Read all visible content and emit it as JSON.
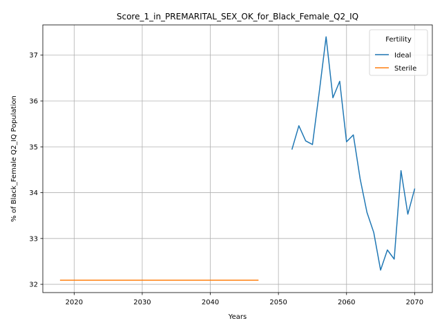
{
  "chart_data": {
    "type": "line",
    "title": "Score_1_in_PREMARITAL_SEX_OK_for_Black_Female_Q2_IQ",
    "xlabel": "Years",
    "ylabel": "% of Black_Female Q2_IQ Population",
    "xlim": [
      2015.4,
      2072.6
    ],
    "ylim": [
      31.82,
      37.66
    ],
    "xticks": [
      2020,
      2030,
      2040,
      2050,
      2060,
      2070
    ],
    "yticks": [
      32,
      33,
      34,
      35,
      36,
      37
    ],
    "grid": true,
    "legend": {
      "title": "Fertility",
      "placement": "top-right"
    },
    "series": [
      {
        "name": "Ideal",
        "color": "#1f77b4",
        "x": [
          2052,
          2053,
          2054,
          2055,
          2056,
          2057,
          2058,
          2059,
          2060,
          2061,
          2062,
          2063,
          2064,
          2065,
          2066,
          2067,
          2068,
          2069,
          2070
        ],
        "y": [
          34.95,
          35.46,
          35.13,
          35.05,
          36.2,
          37.4,
          36.07,
          36.43,
          35.11,
          35.26,
          34.3,
          33.57,
          33.13,
          32.31,
          32.75,
          32.55,
          34.48,
          33.53,
          34.08
        ]
      },
      {
        "name": "Sterile",
        "color": "#ff7f0e",
        "x": [
          2018,
          2047
        ],
        "y": [
          32.09,
          32.09
        ]
      }
    ]
  }
}
